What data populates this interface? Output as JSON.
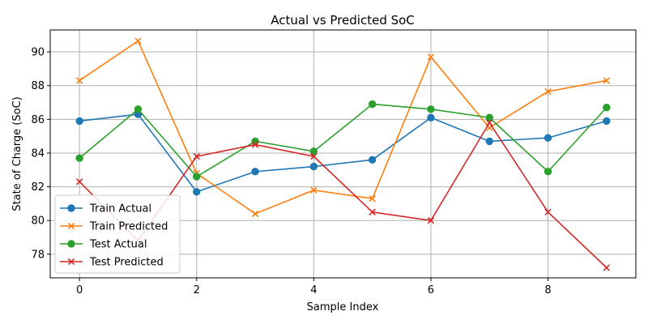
{
  "chart_data": {
    "type": "line",
    "title": "Actual vs Predicted SoC",
    "xlabel": "Sample Index",
    "ylabel": "State of Charge (SoC)",
    "x": [
      0,
      1,
      2,
      3,
      4,
      5,
      6,
      7,
      8,
      9
    ],
    "xlim": [
      -0.5,
      9.5
    ],
    "ylim": [
      76.6,
      91.3
    ],
    "xticks": [
      0,
      2,
      4,
      6,
      8
    ],
    "yticks": [
      78,
      80,
      82,
      84,
      86,
      88,
      90
    ],
    "grid": true,
    "legend_position": "lower-left",
    "series": [
      {
        "name": "Train Actual",
        "color": "#1f77b4",
        "marker": "circle",
        "values": [
          85.9,
          86.3,
          81.7,
          82.9,
          83.2,
          83.6,
          86.1,
          84.7,
          84.9,
          85.9
        ]
      },
      {
        "name": "Train Predicted",
        "color": "#ff7f0e",
        "marker": "x",
        "values": [
          88.3,
          90.65,
          82.8,
          80.4,
          81.8,
          81.3,
          89.7,
          85.5,
          87.65,
          88.3
        ]
      },
      {
        "name": "Test Actual",
        "color": "#2ca02c",
        "marker": "circle",
        "values": [
          83.7,
          86.6,
          82.6,
          84.7,
          84.1,
          86.9,
          86.6,
          86.1,
          82.9,
          86.7
        ]
      },
      {
        "name": "Test Predicted",
        "color": "#d62728",
        "marker": "x",
        "values": [
          82.3,
          78.8,
          83.8,
          84.5,
          83.8,
          80.5,
          80.0,
          85.8,
          80.5,
          77.2
        ]
      }
    ]
  }
}
